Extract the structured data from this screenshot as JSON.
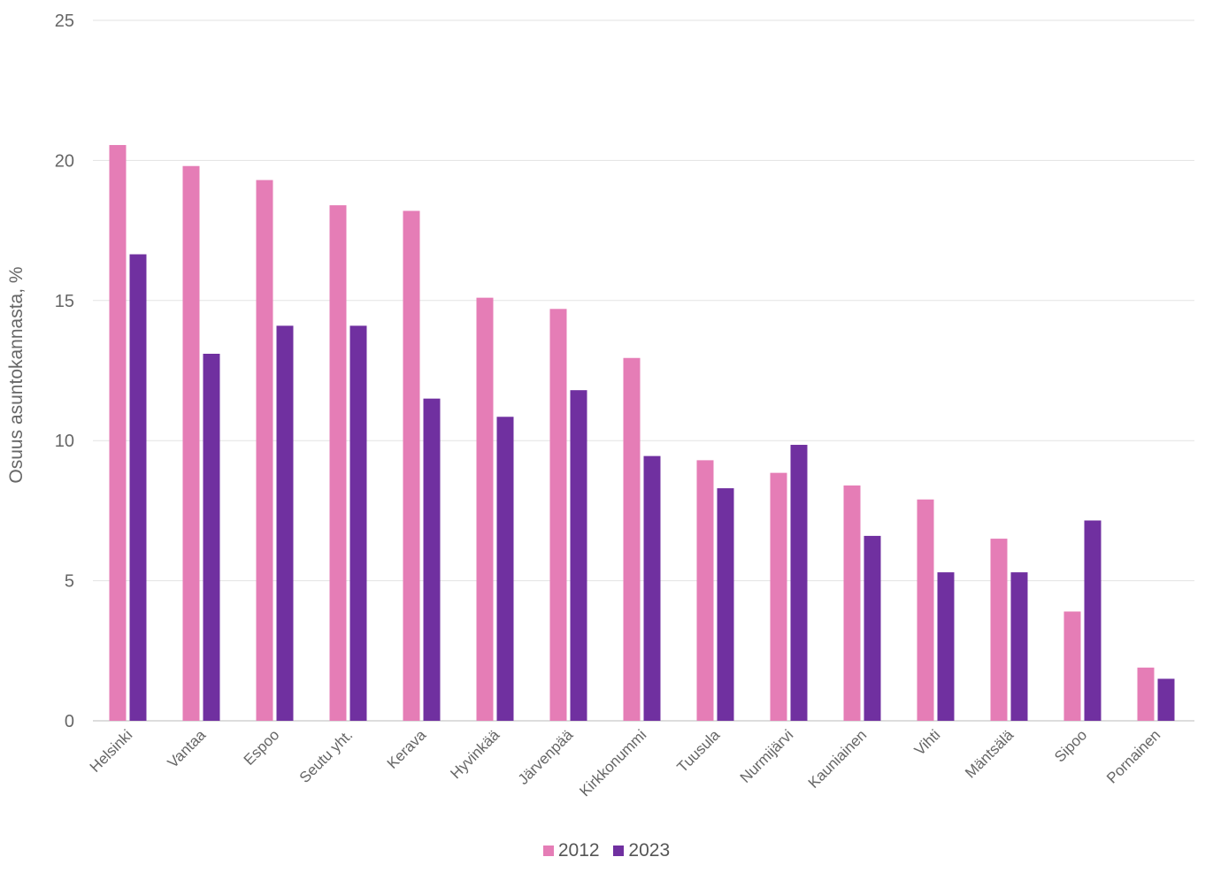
{
  "chart_data": {
    "type": "bar",
    "title": "",
    "xlabel": "",
    "ylabel": "Osuus asuntokannasta, %",
    "ylim": [
      0,
      25
    ],
    "yticks": [
      0,
      5,
      10,
      15,
      20,
      25
    ],
    "grid": true,
    "legend_position": "bottom",
    "categories": [
      "Helsinki",
      "Vantaa",
      "Espoo",
      "Seutu yht.",
      "Kerava",
      "Hyvinkää",
      "Järvenpää",
      "Kirkkonummi",
      "Tuusula",
      "Nurmijärvi",
      "Kauniainen",
      "Vihti",
      "Mäntsälä",
      "Sipoo",
      "Pornainen"
    ],
    "series": [
      {
        "name": "2012",
        "color": "#e57db6",
        "values": [
          20.55,
          19.8,
          19.3,
          18.4,
          18.2,
          15.1,
          14.7,
          12.95,
          9.3,
          8.85,
          8.4,
          7.9,
          6.5,
          3.9,
          1.9
        ]
      },
      {
        "name": "2023",
        "color": "#7030a0",
        "values": [
          16.65,
          13.1,
          14.1,
          14.1,
          11.5,
          10.85,
          11.8,
          9.45,
          8.3,
          9.85,
          6.6,
          5.3,
          5.3,
          7.15,
          1.5
        ]
      }
    ]
  }
}
